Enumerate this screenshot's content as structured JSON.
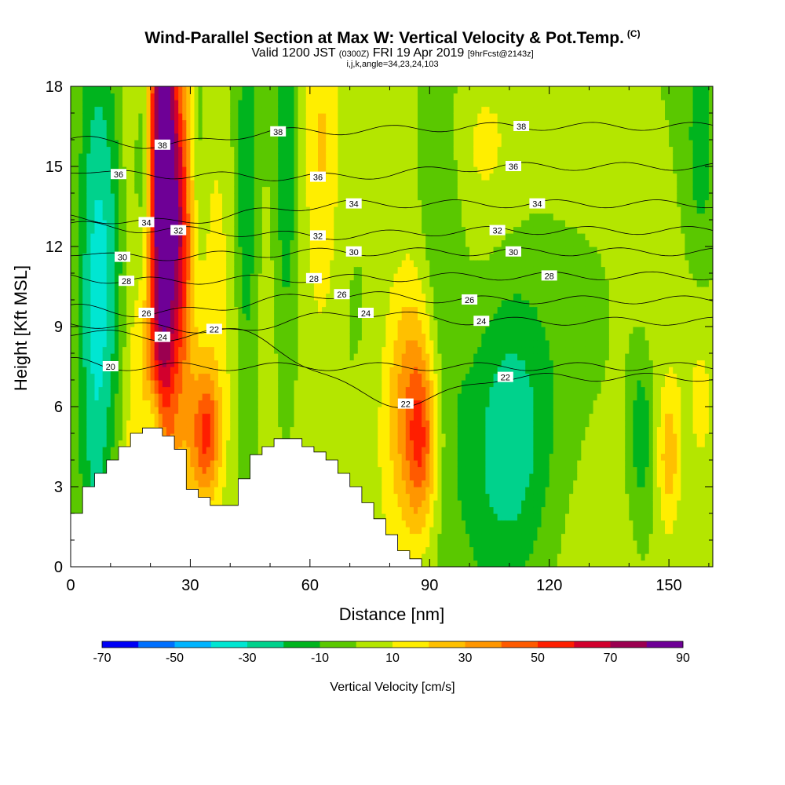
{
  "title": {
    "main": "Wind-Parallel Section at Max W: Vertical Velocity & Pot.Temp.",
    "copyright": "(C)",
    "valid_prefix": "Valid 1200 JST",
    "valid_utc": "(0300Z)",
    "valid_date": "FRI 19 Apr 2019",
    "forecast": "[9hrFcst@2143z]",
    "indices": "i,j,k,angle=34,23,24,103"
  },
  "chart_data": {
    "type": "heatmap",
    "xlabel": "Distance [nm]",
    "ylabel": "Height [Kft MSL]",
    "xlim": [
      0,
      161
    ],
    "ylim": [
      0,
      18
    ],
    "x_ticks": [
      "0",
      "30",
      "60",
      "90",
      "120",
      "150"
    ],
    "y_ticks": [
      "0",
      "3",
      "6",
      "9",
      "12",
      "15",
      "18"
    ],
    "colorbar": {
      "title": "Vertical Velocity [cm/s]",
      "tick_labels": [
        "-70",
        "-50",
        "-30",
        "-10",
        "10",
        "30",
        "50",
        "70",
        "90"
      ],
      "bounds": [
        -70,
        -60,
        -50,
        -40,
        -30,
        -20,
        -10,
        0,
        10,
        20,
        30,
        40,
        50,
        60,
        70,
        80,
        90
      ],
      "colors": [
        "#0000f5",
        "#0070ff",
        "#00b4ff",
        "#00e6d2",
        "#00d28c",
        "#00b41e",
        "#5ac800",
        "#b4e600",
        "#ffee00",
        "#ffc000",
        "#ff9600",
        "#ff5a00",
        "#ff1e00",
        "#d2002d",
        "#9b0050",
        "#6e0096"
      ]
    },
    "contour_field": "Potential Temperature",
    "contour_labels": [
      {
        "text": "38",
        "x": 23,
        "z": 15.8
      },
      {
        "text": "38",
        "x": 52,
        "z": 16.3
      },
      {
        "text": "38",
        "x": 113,
        "z": 16.5
      },
      {
        "text": "36",
        "x": 12,
        "z": 14.7
      },
      {
        "text": "36",
        "x": 62,
        "z": 14.6
      },
      {
        "text": "36",
        "x": 111,
        "z": 15.0
      },
      {
        "text": "34",
        "x": 19,
        "z": 12.9
      },
      {
        "text": "34",
        "x": 71,
        "z": 13.6
      },
      {
        "text": "34",
        "x": 117,
        "z": 13.6
      },
      {
        "text": "32",
        "x": 27,
        "z": 12.6
      },
      {
        "text": "32",
        "x": 62,
        "z": 12.4
      },
      {
        "text": "32",
        "x": 107,
        "z": 12.6
      },
      {
        "text": "30",
        "x": 13,
        "z": 11.6
      },
      {
        "text": "30",
        "x": 71,
        "z": 11.8
      },
      {
        "text": "30",
        "x": 111,
        "z": 11.8
      },
      {
        "text": "28",
        "x": 14,
        "z": 10.7
      },
      {
        "text": "28",
        "x": 61,
        "z": 10.8
      },
      {
        "text": "28",
        "x": 120,
        "z": 10.9
      },
      {
        "text": "26",
        "x": 19,
        "z": 9.5
      },
      {
        "text": "26",
        "x": 68,
        "z": 10.2
      },
      {
        "text": "26",
        "x": 100,
        "z": 10.0
      },
      {
        "text": "24",
        "x": 23,
        "z": 8.6
      },
      {
        "text": "24",
        "x": 74,
        "z": 9.5
      },
      {
        "text": "24",
        "x": 103,
        "z": 9.2
      },
      {
        "text": "22",
        "x": 36,
        "z": 8.9
      },
      {
        "text": "22",
        "x": 84,
        "z": 6.1
      },
      {
        "text": "22",
        "x": 109,
        "z": 7.1
      },
      {
        "text": "20",
        "x": 10,
        "z": 7.5
      }
    ],
    "terrain_profile": [
      [
        0,
        2.0
      ],
      [
        3,
        2.0
      ],
      [
        3,
        3.0
      ],
      [
        6,
        3.0
      ],
      [
        6,
        3.5
      ],
      [
        9,
        3.5
      ],
      [
        9,
        4.0
      ],
      [
        12,
        4.0
      ],
      [
        12,
        4.5
      ],
      [
        15,
        4.5
      ],
      [
        15,
        5.0
      ],
      [
        18,
        5.0
      ],
      [
        18,
        5.2
      ],
      [
        23,
        5.2
      ],
      [
        23,
        4.9
      ],
      [
        26,
        4.9
      ],
      [
        26,
        4.4
      ],
      [
        29,
        4.4
      ],
      [
        29,
        2.9
      ],
      [
        32,
        2.9
      ],
      [
        32,
        2.6
      ],
      [
        35,
        2.6
      ],
      [
        35,
        2.3
      ],
      [
        42,
        2.3
      ],
      [
        42,
        3.3
      ],
      [
        45,
        3.3
      ],
      [
        45,
        4.2
      ],
      [
        48,
        4.2
      ],
      [
        48,
        4.5
      ],
      [
        51,
        4.5
      ],
      [
        51,
        4.8
      ],
      [
        58,
        4.8
      ],
      [
        58,
        4.5
      ],
      [
        61,
        4.5
      ],
      [
        61,
        4.3
      ],
      [
        64,
        4.3
      ],
      [
        64,
        4.0
      ],
      [
        67,
        4.0
      ],
      [
        67,
        3.5
      ],
      [
        70,
        3.5
      ],
      [
        70,
        3.0
      ],
      [
        73,
        3.0
      ],
      [
        73,
        2.4
      ],
      [
        76,
        2.4
      ],
      [
        76,
        1.8
      ],
      [
        79,
        1.8
      ],
      [
        79,
        1.2
      ],
      [
        82,
        1.2
      ],
      [
        82,
        0.6
      ],
      [
        85,
        0.6
      ],
      [
        85,
        0.3
      ],
      [
        88,
        0.3
      ],
      [
        88,
        0
      ]
    ],
    "w_field_blobs": [
      {
        "x": 19,
        "z": 10,
        "sx": 5,
        "sz": 9,
        "w": 25
      },
      {
        "x": 30,
        "z": 10,
        "sx": 6,
        "sz": 9,
        "w": 20
      },
      {
        "x": 6,
        "z": 9.5,
        "sx": 3,
        "sz": 9,
        "w": -30
      },
      {
        "x": 11,
        "z": 12,
        "sx": 3,
        "sz": 6,
        "w": -20
      },
      {
        "x": 23,
        "z": 15,
        "sx": 2.2,
        "sz": 7,
        "w": 70
      },
      {
        "x": 27,
        "z": 13,
        "sx": 2.5,
        "sz": 4,
        "w": 40
      },
      {
        "x": 18,
        "z": 15,
        "sx": 1.8,
        "sz": 4,
        "w": -30
      },
      {
        "x": 32,
        "z": 15,
        "sx": 2,
        "sz": 5,
        "w": -20
      },
      {
        "x": 34,
        "z": 5,
        "sx": 2.5,
        "sz": 1.6,
        "w": 40
      },
      {
        "x": 21,
        "z": 5,
        "sx": 2,
        "sz": 1.2,
        "w": -30
      },
      {
        "x": 44,
        "z": 13,
        "sx": 2,
        "sz": 5,
        "w": -22
      },
      {
        "x": 54,
        "z": 15,
        "sx": 2,
        "sz": 5,
        "w": -20
      },
      {
        "x": 63,
        "z": 15,
        "sx": 3,
        "sz": 5,
        "w": 18
      },
      {
        "x": 86,
        "z": 6,
        "sx": 5,
        "sz": 3.5,
        "w": 38
      },
      {
        "x": 88,
        "z": 4.5,
        "sx": 2.5,
        "sz": 2,
        "w": 25
      },
      {
        "x": 93,
        "z": 10,
        "sx": 4,
        "sz": 6,
        "w": -18
      },
      {
        "x": 110,
        "z": 5,
        "sx": 8,
        "sz": 4,
        "w": -30
      },
      {
        "x": 103,
        "z": 16,
        "sx": 7,
        "sz": 2.5,
        "w": 12
      },
      {
        "x": 143,
        "z": 5,
        "sx": 2,
        "sz": 2,
        "w": -20
      },
      {
        "x": 150,
        "z": 4,
        "sx": 2,
        "sz": 2,
        "w": 25
      },
      {
        "x": 158,
        "z": 15,
        "sx": 3,
        "sz": 4,
        "w": -15
      },
      {
        "x": 158,
        "z": 6,
        "sx": 3,
        "sz": 3,
        "w": 10
      }
    ]
  }
}
